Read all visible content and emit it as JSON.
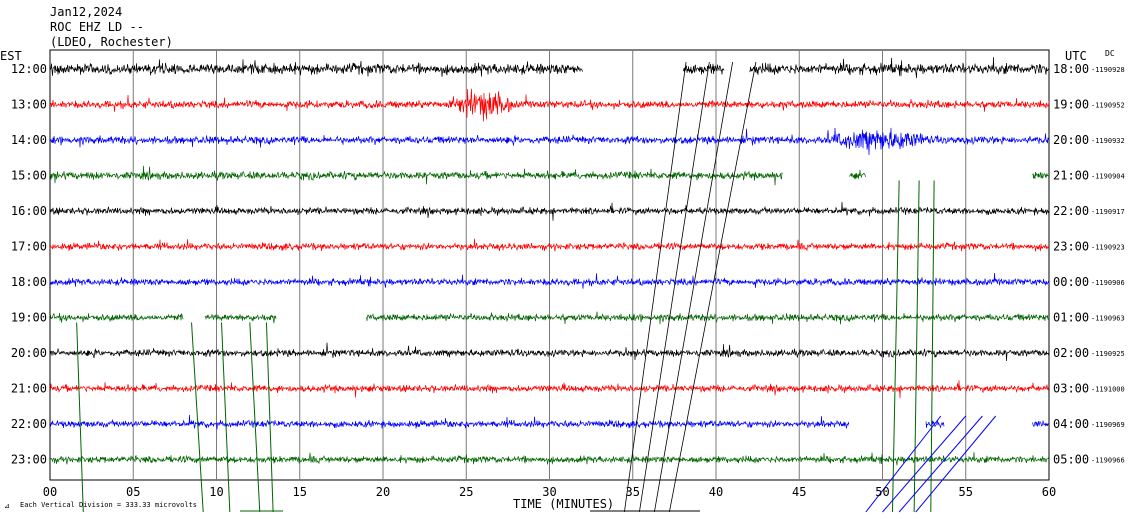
{
  "chart_data": {
    "type": "line",
    "header": {
      "date": "Jan12,2024",
      "station": "ROC EHZ LD --",
      "network": "(LDEO, Rochester)"
    },
    "left_axis_title": "EST",
    "right_axis_title": "UTC",
    "dc_label": "DC",
    "xlabel": "TIME (MINUTES)",
    "xlim": [
      0,
      60
    ],
    "x_ticks": [
      "00",
      "05",
      "10",
      "15",
      "20",
      "25",
      "30",
      "35",
      "40",
      "45",
      "50",
      "55",
      "60"
    ],
    "scale_note": "Each Vertical Division =  333.33 microvolts",
    "trace_colors": [
      "#000000",
      "#ff0000",
      "#0000ff",
      "#006400"
    ],
    "rows": [
      {
        "est": "12:00",
        "utc": "18:00",
        "dc": "-1190928",
        "gaps": [
          [
            32,
            38
          ],
          [
            40.5,
            42
          ]
        ],
        "amp": 1.6
      },
      {
        "est": "13:00",
        "utc": "19:00",
        "dc": "-1190952",
        "gaps": [],
        "amp": 1.1,
        "burst": [
          24,
          28,
          4.2
        ]
      },
      {
        "est": "14:00",
        "utc": "20:00",
        "dc": "-1190932",
        "gaps": [],
        "amp": 1.1,
        "burst": [
          46.5,
          53,
          3.2
        ]
      },
      {
        "est": "15:00",
        "utc": "21:00",
        "dc": "-1190904",
        "gaps": [
          [
            44,
            48
          ],
          [
            49,
            59
          ]
        ],
        "amp": 1.1
      },
      {
        "est": "16:00",
        "utc": "22:00",
        "dc": "-1190917",
        "gaps": [],
        "amp": 1.0
      },
      {
        "est": "17:00",
        "utc": "23:00",
        "dc": "-1190923",
        "gaps": [],
        "amp": 1.0
      },
      {
        "est": "18:00",
        "utc": "00:00",
        "dc": "-1190906",
        "gaps": [],
        "amp": 1.0
      },
      {
        "est": "19:00",
        "utc": "01:00",
        "dc": "-1190963",
        "gaps": [
          [
            8,
            9.3
          ],
          [
            13.6,
            19
          ]
        ],
        "amp": 1.0
      },
      {
        "est": "20:00",
        "utc": "02:00",
        "dc": "-1190925",
        "gaps": [],
        "amp": 1.0
      },
      {
        "est": "21:00",
        "utc": "03:00",
        "dc": "-1191000",
        "gaps": [],
        "amp": 1.0
      },
      {
        "est": "22:00",
        "utc": "04:00",
        "dc": "-1190969",
        "gaps": [
          [
            48,
            52.6
          ],
          [
            53.7,
            59
          ]
        ],
        "amp": 1.0
      },
      {
        "est": "23:00",
        "utc": "05:00",
        "dc": "-1190966",
        "gaps": [],
        "amp": 1.0
      }
    ]
  }
}
